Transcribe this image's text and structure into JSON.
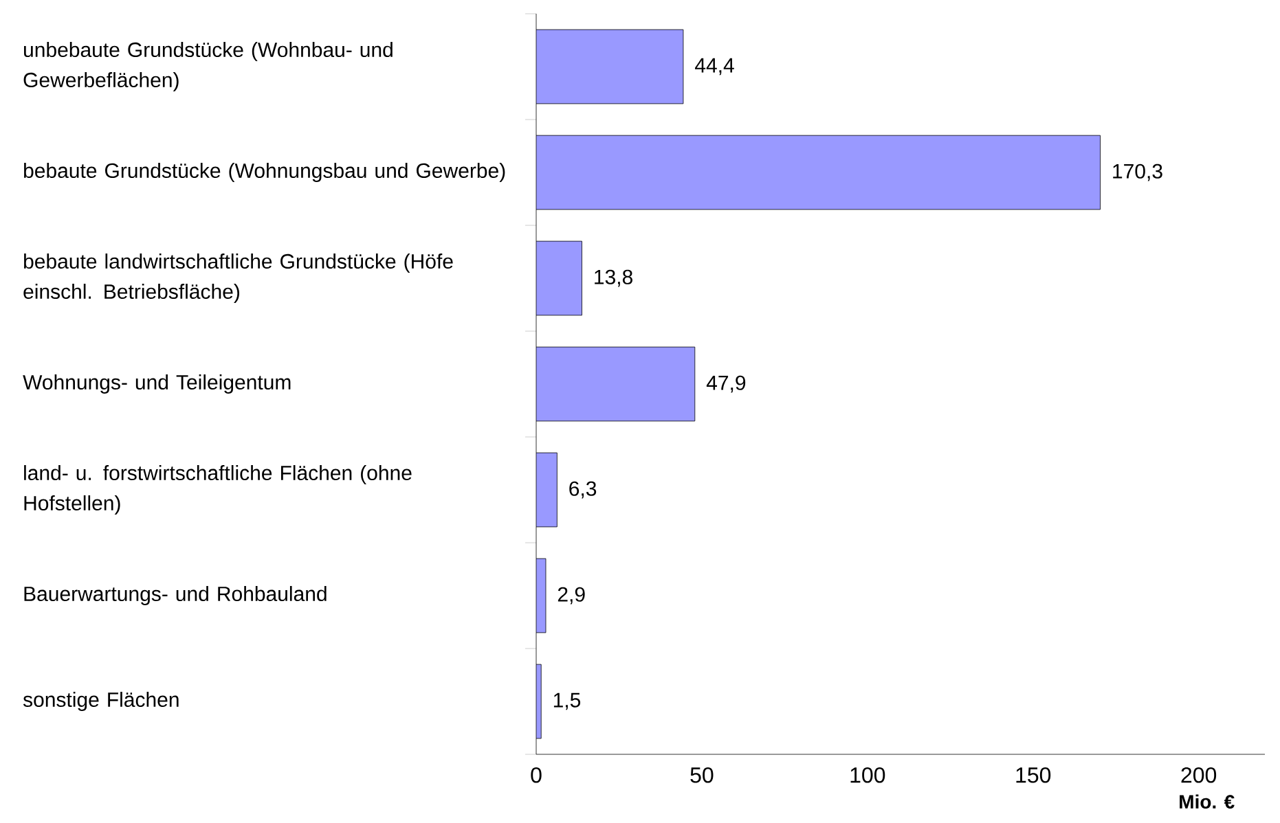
{
  "chart_data": {
    "type": "bar",
    "orientation": "horizontal",
    "categories": [
      "unbebaute Grundstücke (Wohnbau- und Gewerbeflächen)",
      "bebaute Grundstücke (Wohnungsbau und Gewerbe)",
      "bebaute landwirtschaftliche Grundstücke (Höfe einschl. Betriebsfläche)",
      "Wohnungs- und Teileigentum",
      "land- u. forstwirtschaftliche Flächen (ohne Hofstellen)",
      "Bauerwartungs- und Rohbauland",
      "sonstige Flächen"
    ],
    "values": [
      44.4,
      170.3,
      13.8,
      47.9,
      6.3,
      2.9,
      1.5
    ],
    "value_labels": [
      "44,4",
      "170,3",
      "13,8",
      "47,9",
      "6,3",
      "2,9",
      "1,5"
    ],
    "color": "#9999ff",
    "xlim": [
      0,
      220
    ],
    "xticks": [
      0,
      50,
      100,
      150,
      200
    ],
    "xlabel": "Mio. €",
    "grid": false
  }
}
